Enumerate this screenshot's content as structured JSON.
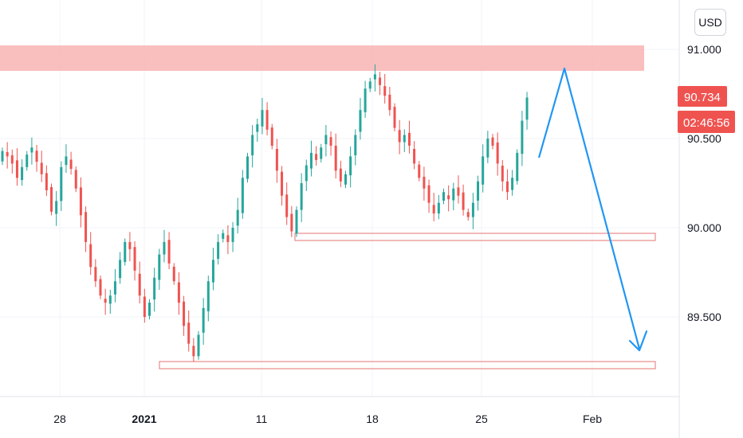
{
  "currency": "USD",
  "price_badge": {
    "value": "90.734",
    "color": "#ef5350"
  },
  "countdown_badge": {
    "value": "02:46:56",
    "color": "#ef5350"
  },
  "colors": {
    "up": "#26a69a",
    "down": "#ef5350",
    "resistance_zone": "#f8b3b3",
    "support_box": "#e57373",
    "arrow": "#2196f3",
    "grid": "#f0f3fa",
    "axis_line": "#e0e3eb"
  },
  "chart_data": {
    "type": "candlestick",
    "x_tick_labels": [
      {
        "label": "28",
        "bold": false
      },
      {
        "label": "2021",
        "bold": true
      },
      {
        "label": "11",
        "bold": false
      },
      {
        "label": "18",
        "bold": false
      },
      {
        "label": "25",
        "bold": false
      },
      {
        "label": "Feb",
        "bold": false
      }
    ],
    "y_tick_labels": [
      "91.000",
      "90.500",
      "90.000",
      "89.500"
    ],
    "ylim": [
      89.05,
      91.25
    ],
    "series_shape": [
      [
        90.43,
        1
      ],
      [
        90.4,
        1
      ],
      [
        90.36,
        -1
      ],
      [
        90.28,
        -1
      ],
      [
        90.34,
        1
      ],
      [
        90.41,
        1
      ],
      [
        90.45,
        1
      ],
      [
        90.37,
        -1
      ],
      [
        90.3,
        -1
      ],
      [
        90.21,
        -1
      ],
      [
        90.09,
        -1
      ],
      [
        90.15,
        1
      ],
      [
        90.34,
        1
      ],
      [
        90.4,
        1
      ],
      [
        90.33,
        -1
      ],
      [
        90.22,
        -1
      ],
      [
        90.07,
        -1
      ],
      [
        89.92,
        -1
      ],
      [
        89.78,
        -1
      ],
      [
        89.7,
        -1
      ],
      [
        89.62,
        -1
      ],
      [
        89.58,
        -1
      ],
      [
        89.62,
        1
      ],
      [
        89.7,
        1
      ],
      [
        89.82,
        1
      ],
      [
        89.92,
        1
      ],
      [
        89.88,
        -1
      ],
      [
        89.76,
        -1
      ],
      [
        89.62,
        -1
      ],
      [
        89.5,
        -1
      ],
      [
        89.58,
        1
      ],
      [
        89.72,
        1
      ],
      [
        89.85,
        1
      ],
      [
        89.92,
        1
      ],
      [
        89.8,
        -1
      ],
      [
        89.7,
        -1
      ],
      [
        89.58,
        -1
      ],
      [
        89.45,
        -1
      ],
      [
        89.35,
        -1
      ],
      [
        89.28,
        -1
      ],
      [
        89.4,
        1
      ],
      [
        89.55,
        1
      ],
      [
        89.7,
        1
      ],
      [
        89.82,
        1
      ],
      [
        89.92,
        1
      ],
      [
        89.97,
        1
      ],
      [
        89.92,
        -1
      ],
      [
        90.0,
        1
      ],
      [
        90.1,
        1
      ],
      [
        90.28,
        1
      ],
      [
        90.4,
        1
      ],
      [
        90.52,
        1
      ],
      [
        90.58,
        1
      ],
      [
        90.66,
        1
      ],
      [
        90.55,
        -1
      ],
      [
        90.46,
        -1
      ],
      [
        90.32,
        -1
      ],
      [
        90.18,
        -1
      ],
      [
        90.06,
        -1
      ],
      [
        89.98,
        -1
      ],
      [
        90.1,
        1
      ],
      [
        90.25,
        1
      ],
      [
        90.35,
        1
      ],
      [
        90.42,
        1
      ],
      [
        90.38,
        -1
      ],
      [
        90.45,
        1
      ],
      [
        90.52,
        1
      ],
      [
        90.46,
        -1
      ],
      [
        90.32,
        -1
      ],
      [
        90.26,
        -1
      ],
      [
        90.3,
        1
      ],
      [
        90.4,
        1
      ],
      [
        90.52,
        1
      ],
      [
        90.66,
        1
      ],
      [
        90.78,
        1
      ],
      [
        90.82,
        1
      ],
      [
        90.86,
        1
      ],
      [
        90.8,
        -1
      ],
      [
        90.74,
        -1
      ],
      [
        90.66,
        -1
      ],
      [
        90.56,
        -1
      ],
      [
        90.48,
        -1
      ],
      [
        90.52,
        1
      ],
      [
        90.46,
        -1
      ],
      [
        90.36,
        -1
      ],
      [
        90.28,
        -1
      ],
      [
        90.22,
        -1
      ],
      [
        90.14,
        -1
      ],
      [
        90.08,
        -1
      ],
      [
        90.14,
        1
      ],
      [
        90.2,
        1
      ],
      [
        90.16,
        -1
      ],
      [
        90.22,
        1
      ],
      [
        90.18,
        -1
      ],
      [
        90.1,
        -1
      ],
      [
        90.06,
        -1
      ],
      [
        90.14,
        1
      ],
      [
        90.26,
        1
      ],
      [
        90.4,
        1
      ],
      [
        90.5,
        1
      ],
      [
        90.46,
        -1
      ],
      [
        90.36,
        -1
      ],
      [
        90.26,
        -1
      ],
      [
        90.2,
        -1
      ],
      [
        90.28,
        1
      ],
      [
        90.42,
        1
      ],
      [
        90.6,
        1
      ],
      [
        90.73,
        1
      ]
    ]
  },
  "annotations": {
    "resistance_zone": [
      90.87,
      91.01
    ],
    "support_box_1": [
      89.94,
      89.98
    ],
    "support_box_2": [
      89.24,
      89.28
    ],
    "arrow_path": [
      90.4,
      90.87,
      89.22
    ]
  }
}
